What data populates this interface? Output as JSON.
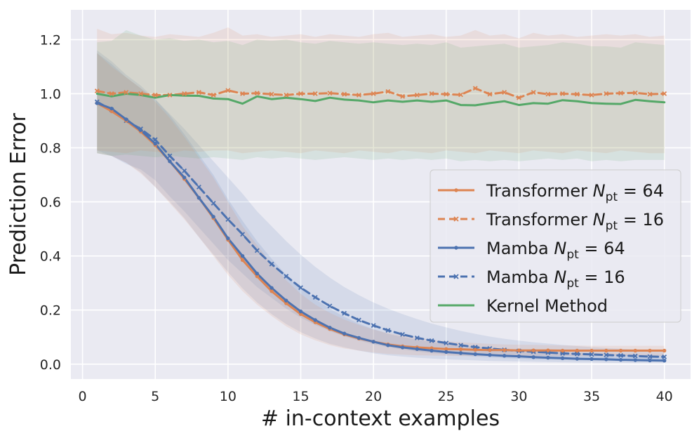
{
  "chart_data": {
    "type": "line",
    "title": "",
    "xlabel": "# in-context examples",
    "ylabel": "Prediction Error",
    "xlim": [
      -0.8,
      41.8
    ],
    "ylim": [
      -0.055,
      1.31
    ],
    "xticks": [
      0,
      5,
      10,
      15,
      20,
      25,
      30,
      35,
      40
    ],
    "xtick_labels": [
      "0",
      "5",
      "10",
      "15",
      "20",
      "25",
      "30",
      "35",
      "40"
    ],
    "yticks": [
      0.0,
      0.2,
      0.4,
      0.6,
      0.8,
      1.0,
      1.2
    ],
    "ytick_labels": [
      "0.0",
      "0.2",
      "0.4",
      "0.6",
      "0.8",
      "1.0",
      "1.2"
    ],
    "grid": true,
    "legend_position": "center-right",
    "x": [
      1,
      2,
      3,
      4,
      5,
      6,
      7,
      8,
      9,
      10,
      11,
      12,
      13,
      14,
      15,
      16,
      17,
      18,
      19,
      20,
      21,
      22,
      23,
      24,
      25,
      26,
      27,
      28,
      29,
      30,
      31,
      32,
      33,
      34,
      35,
      36,
      37,
      38,
      39,
      40
    ],
    "series": [
      {
        "name": "Transformer",
        "sub": "pt",
        "eq": " = 64",
        "color": "#dd8452",
        "dash": "solid",
        "marker": "dot",
        "values": [
          0.965,
          0.935,
          0.9,
          0.86,
          0.81,
          0.75,
          0.685,
          0.615,
          0.54,
          0.46,
          0.385,
          0.325,
          0.27,
          0.225,
          0.185,
          0.155,
          0.13,
          0.11,
          0.095,
          0.083,
          0.073,
          0.066,
          0.062,
          0.059,
          0.056,
          0.055,
          0.053,
          0.052,
          0.052,
          0.051,
          0.051,
          0.051,
          0.05,
          0.05,
          0.05,
          0.05,
          0.05,
          0.05,
          0.05,
          0.05
        ],
        "band_lower": [
          0.78,
          0.77,
          0.745,
          0.705,
          0.655,
          0.595,
          0.535,
          0.47,
          0.4,
          0.33,
          0.27,
          0.22,
          0.178,
          0.14,
          0.11,
          0.088,
          0.07,
          0.058,
          0.05,
          0.043,
          0.038,
          0.035,
          0.033,
          0.032,
          0.031,
          0.03,
          0.03,
          0.03,
          0.03,
          0.03,
          0.03,
          0.03,
          0.03,
          0.03,
          0.03,
          0.03,
          0.03,
          0.03,
          0.03,
          0.03
        ],
        "band_upper": [
          1.15,
          1.1,
          1.06,
          1.02,
          0.97,
          0.91,
          0.84,
          0.765,
          0.69,
          0.6,
          0.51,
          0.44,
          0.37,
          0.31,
          0.26,
          0.22,
          0.19,
          0.165,
          0.145,
          0.128,
          0.115,
          0.105,
          0.097,
          0.09,
          0.085,
          0.081,
          0.078,
          0.075,
          0.073,
          0.072,
          0.071,
          0.07,
          0.069,
          0.069,
          0.068,
          0.068,
          0.068,
          0.068,
          0.068,
          0.068
        ]
      },
      {
        "name": "Transformer",
        "sub": "pt",
        "eq": " = 16",
        "color": "#dd8452",
        "dash": "dashed",
        "marker": "x",
        "values": [
          1.01,
          1.0,
          1.005,
          1.0,
          0.995,
          0.995,
          1.0,
          1.005,
          0.995,
          1.012,
          1.0,
          1.002,
          0.998,
          0.995,
          1.0,
          1.0,
          1.002,
          0.998,
          0.995,
          1.0,
          1.008,
          0.99,
          0.995,
          1.0,
          0.998,
          0.996,
          1.02,
          0.998,
          1.005,
          0.985,
          1.005,
          0.998,
          1.0,
          0.998,
          0.995,
          1.0,
          1.002,
          1.003,
          0.998,
          1.0
        ],
        "band_lower": [
          0.79,
          0.785,
          0.78,
          0.79,
          0.785,
          0.78,
          0.79,
          0.785,
          0.79,
          0.79,
          0.78,
          0.785,
          0.79,
          0.785,
          0.78,
          0.79,
          0.785,
          0.78,
          0.79,
          0.785,
          0.78,
          0.79,
          0.785,
          0.78,
          0.79,
          0.785,
          0.78,
          0.79,
          0.785,
          0.78,
          0.79,
          0.785,
          0.78,
          0.79,
          0.785,
          0.78,
          0.79,
          0.785,
          0.78,
          0.78
        ],
        "band_upper": [
          1.24,
          1.22,
          1.225,
          1.215,
          1.21,
          1.22,
          1.215,
          1.21,
          1.225,
          1.245,
          1.215,
          1.22,
          1.21,
          1.215,
          1.22,
          1.21,
          1.22,
          1.215,
          1.21,
          1.22,
          1.225,
          1.21,
          1.215,
          1.22,
          1.21,
          1.215,
          1.235,
          1.215,
          1.22,
          1.205,
          1.225,
          1.215,
          1.22,
          1.21,
          1.215,
          1.22,
          1.215,
          1.22,
          1.21,
          1.215
        ]
      },
      {
        "name": "Mamba",
        "sub": "pt",
        "eq": " = 64",
        "color": "#4c72b0",
        "dash": "solid",
        "marker": "dot",
        "values": [
          0.965,
          0.945,
          0.905,
          0.865,
          0.815,
          0.75,
          0.69,
          0.615,
          0.545,
          0.465,
          0.4,
          0.335,
          0.282,
          0.235,
          0.195,
          0.163,
          0.135,
          0.113,
          0.097,
          0.083,
          0.07,
          0.062,
          0.056,
          0.05,
          0.045,
          0.041,
          0.037,
          0.034,
          0.031,
          0.029,
          0.026,
          0.024,
          0.022,
          0.02,
          0.019,
          0.018,
          0.016,
          0.015,
          0.014,
          0.013
        ],
        "band_lower": [
          0.78,
          0.77,
          0.745,
          0.71,
          0.655,
          0.6,
          0.54,
          0.47,
          0.405,
          0.34,
          0.28,
          0.228,
          0.185,
          0.148,
          0.118,
          0.095,
          0.075,
          0.062,
          0.05,
          0.04,
          0.033,
          0.028,
          0.024,
          0.021,
          0.018,
          0.016,
          0.014,
          0.012,
          0.011,
          0.01,
          0.009,
          0.008,
          0.007,
          0.006,
          0.006,
          0.005,
          0.005,
          0.004,
          0.004,
          0.004
        ],
        "band_upper": [
          1.16,
          1.12,
          1.07,
          1.03,
          0.98,
          0.92,
          0.85,
          0.775,
          0.7,
          0.61,
          0.53,
          0.455,
          0.39,
          0.33,
          0.28,
          0.24,
          0.205,
          0.175,
          0.15,
          0.13,
          0.112,
          0.1,
          0.09,
          0.082,
          0.075,
          0.069,
          0.064,
          0.06,
          0.056,
          0.053,
          0.05,
          0.047,
          0.045,
          0.043,
          0.041,
          0.039,
          0.038,
          0.036,
          0.035,
          0.034
        ]
      },
      {
        "name": "Mamba",
        "sub": "pt",
        "eq": " = 16",
        "color": "#4c72b0",
        "dash": "dashed",
        "marker": "x",
        "values": [
          0.97,
          0.94,
          0.9,
          0.87,
          0.83,
          0.77,
          0.715,
          0.655,
          0.595,
          0.535,
          0.48,
          0.42,
          0.37,
          0.325,
          0.283,
          0.247,
          0.215,
          0.188,
          0.163,
          0.143,
          0.125,
          0.11,
          0.097,
          0.087,
          0.078,
          0.07,
          0.063,
          0.058,
          0.053,
          0.049,
          0.046,
          0.043,
          0.04,
          0.038,
          0.036,
          0.034,
          0.032,
          0.03,
          0.028,
          0.027
        ],
        "band_lower": [
          0.79,
          0.77,
          0.74,
          0.72,
          0.68,
          0.62,
          0.565,
          0.505,
          0.445,
          0.385,
          0.335,
          0.285,
          0.245,
          0.205,
          0.172,
          0.145,
          0.122,
          0.103,
          0.087,
          0.074,
          0.063,
          0.054,
          0.047,
          0.041,
          0.036,
          0.032,
          0.028,
          0.025,
          0.022,
          0.02,
          0.018,
          0.016,
          0.015,
          0.014,
          0.013,
          0.012,
          0.011,
          0.01,
          0.009,
          0.009
        ],
        "band_upper": [
          1.15,
          1.11,
          1.06,
          1.02,
          0.98,
          0.925,
          0.87,
          0.81,
          0.75,
          0.69,
          0.63,
          0.565,
          0.51,
          0.455,
          0.405,
          0.36,
          0.32,
          0.285,
          0.255,
          0.228,
          0.205,
          0.185,
          0.167,
          0.15,
          0.136,
          0.123,
          0.112,
          0.102,
          0.094,
          0.087,
          0.081,
          0.076,
          0.071,
          0.067,
          0.063,
          0.06,
          0.057,
          0.054,
          0.052,
          0.05
        ]
      },
      {
        "name": "Kernel Method",
        "sub": "",
        "eq": "",
        "color": "#55a868",
        "dash": "solid",
        "marker": "none",
        "values": [
          1.0,
          0.99,
          1.0,
          0.995,
          0.985,
          0.995,
          0.993,
          0.992,
          0.982,
          0.98,
          0.963,
          0.99,
          0.98,
          0.985,
          0.98,
          0.973,
          0.985,
          0.978,
          0.975,
          0.968,
          0.975,
          0.97,
          0.975,
          0.97,
          0.975,
          0.958,
          0.957,
          0.965,
          0.972,
          0.958,
          0.965,
          0.963,
          0.976,
          0.972,
          0.965,
          0.963,
          0.962,
          0.977,
          0.972,
          0.968
        ],
        "band_lower": [
          0.78,
          0.77,
          0.775,
          0.77,
          0.765,
          0.77,
          0.765,
          0.76,
          0.765,
          0.76,
          0.755,
          0.765,
          0.76,
          0.765,
          0.76,
          0.755,
          0.76,
          0.765,
          0.76,
          0.755,
          0.76,
          0.755,
          0.76,
          0.755,
          0.76,
          0.75,
          0.755,
          0.75,
          0.755,
          0.75,
          0.755,
          0.76,
          0.755,
          0.76,
          0.75,
          0.755,
          0.75,
          0.755,
          0.755,
          0.755
        ],
        "band_upper": [
          1.19,
          1.195,
          1.235,
          1.215,
          1.2,
          1.205,
          1.195,
          1.2,
          1.19,
          1.195,
          1.18,
          1.2,
          1.195,
          1.2,
          1.19,
          1.185,
          1.195,
          1.19,
          1.185,
          1.19,
          1.185,
          1.18,
          1.185,
          1.18,
          1.19,
          1.17,
          1.175,
          1.18,
          1.185,
          1.17,
          1.175,
          1.18,
          1.19,
          1.185,
          1.175,
          1.175,
          1.17,
          1.19,
          1.185,
          1.18
        ]
      }
    ]
  }
}
